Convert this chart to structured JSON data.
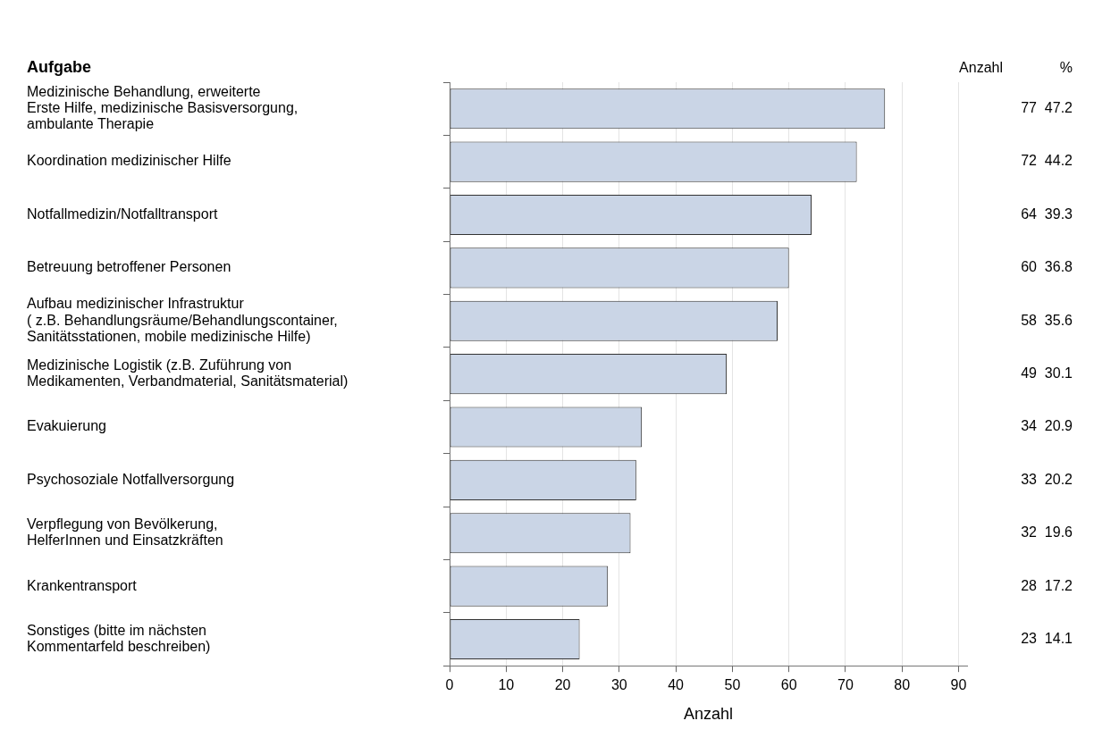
{
  "chart_data": {
    "type": "bar",
    "orientation": "horizontal",
    "ylabel": "Aufgabe",
    "xlabel": "Anzahl",
    "categories": [
      "Medizinische Behandlung, erweiterte\nErste Hilfe, medizinische Basisversorgung,\nambulante Therapie",
      "Koordination medizinischer Hilfe",
      "Notfallmedizin/Notfalltransport",
      "Betreuung betroffener Personen",
      "Aufbau medizinischer Infrastruktur\n( z.B. Behandlungsräume/Behandlungscontainer,\nSanitätsstationen, mobile medizinische Hilfe)",
      "Medizinische Logistik (z.B. Zuführung von\nMedikamenten, Verbandmaterial, Sanitätsmaterial)",
      "Evakuierung",
      "Psychosoziale Notfallversorgung",
      "Verpflegung von Bevölkerung,\nHelferInnen und Einsatzkräften",
      "Krankentransport",
      "Sonstiges (bitte im nächsten\nKommentarfeld beschreiben)"
    ],
    "values": [
      77,
      72,
      64,
      60,
      58,
      49,
      34,
      33,
      32,
      28,
      23
    ],
    "value_labels": [
      "77  47.2",
      "72  44.2",
      "64  39.3",
      "60  36.8",
      "58  35.6",
      "49  30.1",
      "34  20.9",
      "33  20.2",
      "32  19.6",
      "28  17.2",
      "23  14.1"
    ],
    "color": "#cad5e6",
    "xlim": [
      0,
      91.5
    ],
    "xticks": [
      0,
      10,
      20,
      30,
      40,
      50,
      60,
      70,
      80,
      90
    ],
    "grid": "x",
    "legend": false,
    "annotations": [
      "Anzahl",
      "%"
    ]
  }
}
